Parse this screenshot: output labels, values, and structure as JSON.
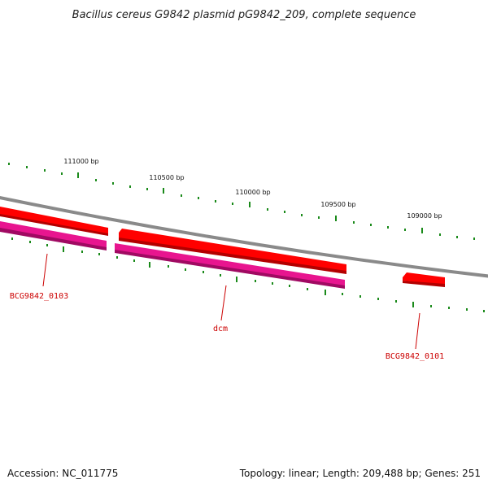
{
  "title": "Bacillus cereus G9842 plasmid pG9842_209, complete sequence",
  "footer": {
    "accession": "Accession: NC_011775",
    "summary": "Topology: linear; Length: 209,488 bp; Genes: 251"
  },
  "scale_labels": [
    "111000 bp",
    "110500 bp",
    "110000 bp",
    "109500 bp",
    "109000 bp"
  ],
  "genes": [
    {
      "name": "BCG9842_0103"
    },
    {
      "name": "dcm"
    },
    {
      "name": "BCG9842_0101"
    }
  ],
  "colors": {
    "backbone": "#8a8a8a",
    "gene_forward": "#ff0000",
    "gene_forward_shadow": "#b30000",
    "cds": "#e8158f",
    "cds_shadow": "#a00a62",
    "ticks": "#1a8a1a",
    "label": "#cc0000"
  }
}
